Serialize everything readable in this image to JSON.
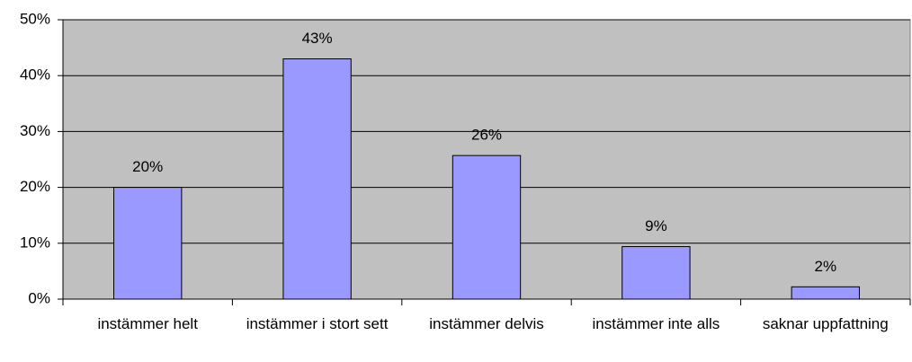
{
  "chart_data": {
    "type": "bar",
    "categories": [
      "instämmer helt",
      "instämmer i stort sett",
      "instämmer delvis",
      "instämmer inte alls",
      "saknar uppfattning"
    ],
    "values": [
      20,
      43,
      25.7,
      9.4,
      2.2
    ],
    "value_labels": [
      "20%",
      "43%",
      "26%",
      "9%",
      "2%"
    ],
    "color": "#9999ff",
    "ylim": [
      0,
      50
    ],
    "yticks": [
      {
        "value": 0,
        "label": "0%"
      },
      {
        "value": 10,
        "label": "10%"
      },
      {
        "value": 20,
        "label": "20%"
      },
      {
        "value": 30,
        "label": "30%"
      },
      {
        "value": 40,
        "label": "40%"
      },
      {
        "value": 50,
        "label": "50%"
      }
    ],
    "grid": true
  }
}
